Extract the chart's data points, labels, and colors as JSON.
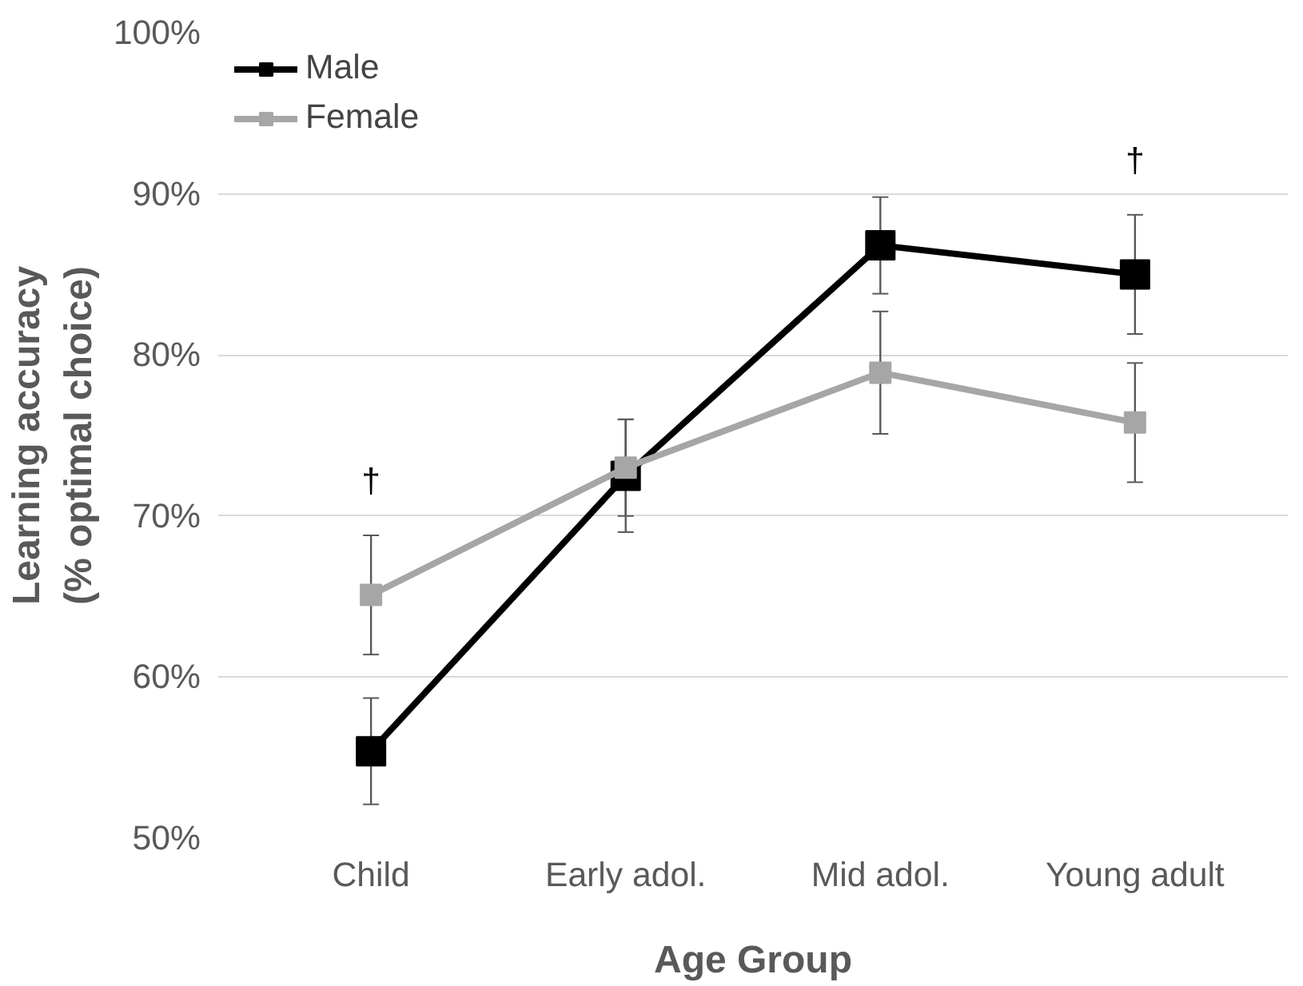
{
  "chart_data": {
    "type": "line",
    "xlabel": "Age Group",
    "ylabel": "Learning accuracy\n(% optimal choice)",
    "categories": [
      "Child",
      "Early adol.",
      "Mid adol.",
      "Young adult"
    ],
    "series": [
      {
        "name": "Male",
        "color": "#000000",
        "values": [
          55.4,
          72.5,
          86.8,
          85.0
        ],
        "errors": [
          3.3,
          3.5,
          3.0,
          3.7
        ]
      },
      {
        "name": "Female",
        "color": "#a6a6a6",
        "values": [
          65.1,
          73.0,
          78.9,
          75.8
        ],
        "errors": [
          3.7,
          3.0,
          3.8,
          3.7
        ]
      }
    ],
    "ylim": [
      50,
      100
    ],
    "yticks": [
      {
        "value": 50,
        "label": "50%"
      },
      {
        "value": 60,
        "label": "60%"
      },
      {
        "value": 70,
        "label": "70%"
      },
      {
        "value": 80,
        "label": "80%"
      },
      {
        "value": 90,
        "label": "90%"
      },
      {
        "value": 100,
        "label": "100%"
      }
    ],
    "annotations": [
      "†",
      "†"
    ],
    "grid": "y",
    "legend": "top left",
    "marker": "square",
    "line_style": "solid"
  }
}
